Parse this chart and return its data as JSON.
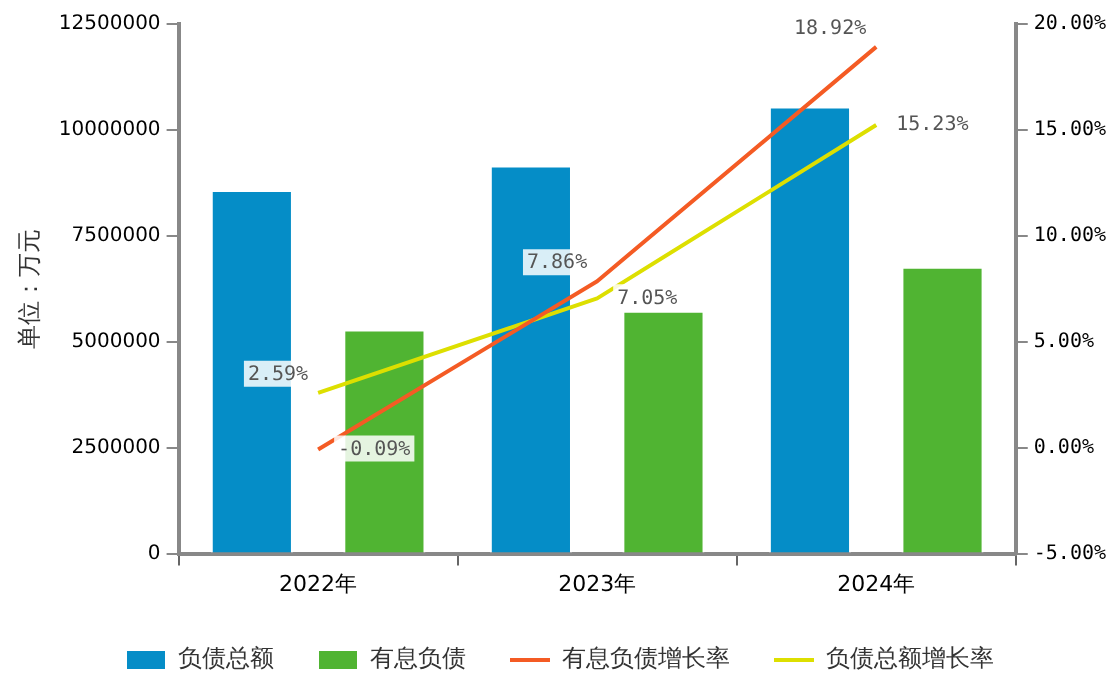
{
  "chart_data": {
    "type": "bar",
    "ylabel": "单位：万元",
    "categories": [
      "2022年",
      "2023年",
      "2024年"
    ],
    "series": [
      {
        "name": "负债总额",
        "color": "#058dc7",
        "values": [
          8580000,
          9160000,
          10550000
        ]
      },
      {
        "name": "有息负债",
        "color": "#50b432",
        "values": [
          5290000,
          5730000,
          6770000
        ]
      },
      {
        "name": "有息负债增长率",
        "type": "line",
        "axis": "y2",
        "color": "#f45b24",
        "values": [
          -0.09,
          7.86,
          18.92
        ],
        "value_labels": [
          "-0.09%",
          "7.86%",
          "18.92%"
        ]
      },
      {
        "name": "负债总额增长率",
        "type": "line",
        "axis": "y2",
        "color": "#dddf00",
        "values": [
          2.59,
          7.05,
          15.23
        ],
        "value_labels": [
          "2.59%",
          "7.05%",
          "15.23%"
        ]
      }
    ],
    "ylim": [
      0,
      12500000
    ],
    "yticks": [
      0,
      2500000,
      5000000,
      7500000,
      10000000,
      12500000
    ],
    "y2lim": [
      -5,
      20
    ],
    "y2ticks": [
      {
        "value": -5,
        "label": "-5.00%"
      },
      {
        "value": 0,
        "label": "0.00%"
      },
      {
        "value": 5,
        "label": "5.00%"
      },
      {
        "value": 10,
        "label": "10.00%"
      },
      {
        "value": 15,
        "label": "15.00%"
      },
      {
        "value": 20,
        "label": "20.00%"
      }
    ],
    "grid": false,
    "legend": "bottom",
    "marker": "none",
    "line_style": "solid"
  }
}
